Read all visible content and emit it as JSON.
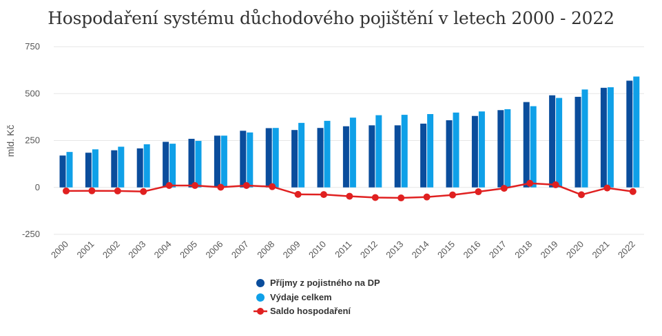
{
  "chart_data": {
    "type": "bar",
    "title": "Hospodaření systému důchodového pojištění v letech 2000 - 2022",
    "xlabel": "",
    "ylabel": "mld. Kč",
    "ylim": [
      -250,
      750
    ],
    "yticks": [
      750,
      500,
      250,
      0,
      -250
    ],
    "ytick_labels": [
      "750",
      "500",
      "250",
      "0",
      "-250"
    ],
    "grid": true,
    "legend_position": "bottom-center",
    "categories": [
      "2000",
      "2001",
      "2002",
      "2003",
      "2004",
      "2005",
      "2006",
      "2007",
      "2008",
      "2009",
      "2010",
      "2011",
      "2012",
      "2013",
      "2014",
      "2015",
      "2016",
      "2017",
      "2018",
      "2019",
      "2020",
      "2021",
      "2022"
    ],
    "series": [
      {
        "name": "Příjmy z pojistného na DP",
        "type": "bar",
        "color": "#0a4d9c",
        "values": [
          170,
          185,
          198,
          208,
          243,
          259,
          276,
          302,
          316,
          306,
          317,
          326,
          331,
          331,
          340,
          358,
          381,
          412,
          455,
          491,
          483,
          531,
          569
        ]
      },
      {
        "name": "Výdaje celkem",
        "type": "bar",
        "color": "#0fa0e8",
        "values": [
          189,
          203,
          217,
          230,
          233,
          248,
          276,
          293,
          317,
          344,
          355,
          372,
          385,
          387,
          391,
          399,
          405,
          417,
          433,
          477,
          522,
          534,
          591
        ]
      },
      {
        "name": "Saldo hospodaření",
        "type": "line",
        "color": "#e02020",
        "values": [
          -19,
          -18,
          -19,
          -22,
          10,
          10,
          1,
          10,
          4,
          -37,
          -38,
          -47,
          -54,
          -56,
          -51,
          -40,
          -23,
          -5,
          22,
          14,
          -39,
          -3,
          -22
        ]
      }
    ]
  }
}
